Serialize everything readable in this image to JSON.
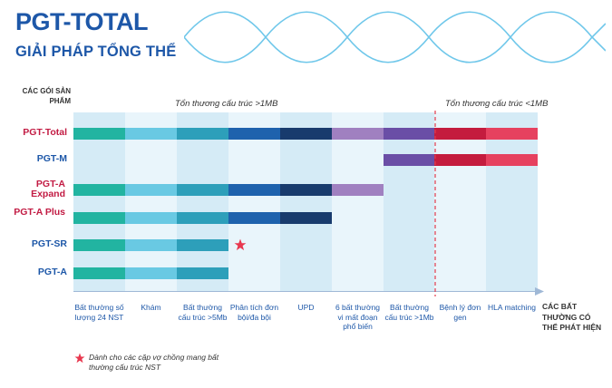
{
  "header": {
    "title": "PGT-TOTAL",
    "subtitle": "GIẢI PHÁP TỔNG THỂ"
  },
  "products_header": "CÁC GÓI SẢN PHẨM",
  "ranges": {
    "large": "Tổn thương cấu trúc >1MB",
    "small": "Tổn thương cấu trúc <1MB"
  },
  "columns": [
    {
      "label": "Bất thường số lượng 24 NST",
      "color": "#22b4a1"
    },
    {
      "label": "Khám",
      "color": "#69c9e3"
    },
    {
      "label": "Bất thường cấu trúc >5Mb",
      "color": "#2d9fba"
    },
    {
      "label": "Phân tích đơn bội/đa bội",
      "color": "#1e62ad"
    },
    {
      "label": "UPD",
      "color": "#183b6d"
    },
    {
      "label": "6 bất thường vi mất đoạn phổ biến",
      "color": "#a080c0"
    },
    {
      "label": "Bất thường cấu trúc >1Mb",
      "color": "#6a4ea6"
    },
    {
      "label": "Bệnh lý đơn gen",
      "color": "#c41c3e"
    },
    {
      "label": "HLA matching",
      "color": "#e6415f"
    }
  ],
  "axis_title": "CÁC BẤT THƯỜNG CÓ THỂ PHÁT HIỆN",
  "products": [
    {
      "name": "PGT-Total",
      "color": "#c21b43",
      "covers": [
        0,
        1,
        2,
        3,
        4,
        5,
        6,
        7,
        8
      ]
    },
    {
      "name": "PGT-M",
      "color": "#1d57a8",
      "covers": [
        6,
        7,
        8
      ]
    },
    {
      "name": "PGT-A Expand",
      "color": "#c21b43",
      "covers": [
        0,
        1,
        2,
        3,
        4,
        5
      ]
    },
    {
      "name": "PGT-A Plus",
      "color": "#c21b43",
      "covers": [
        0,
        1,
        2,
        3,
        4
      ]
    },
    {
      "name": "PGT-SR",
      "color": "#1d57a8",
      "covers": [
        0,
        1,
        2
      ],
      "starred": true
    },
    {
      "name": "PGT-A",
      "color": "#1d57a8",
      "covers": [
        0,
        1,
        2
      ]
    }
  ],
  "note": "Dành cho các cặp vợ chồng mang bất thường cấu trúc NST",
  "colors": {
    "brand_blue": "#1d57a8",
    "column_bg_light": "#e9f5fb",
    "column_bg_dark": "#d5ebf6",
    "divider_red": "#e23b4d",
    "star_red": "#e8384f"
  }
}
